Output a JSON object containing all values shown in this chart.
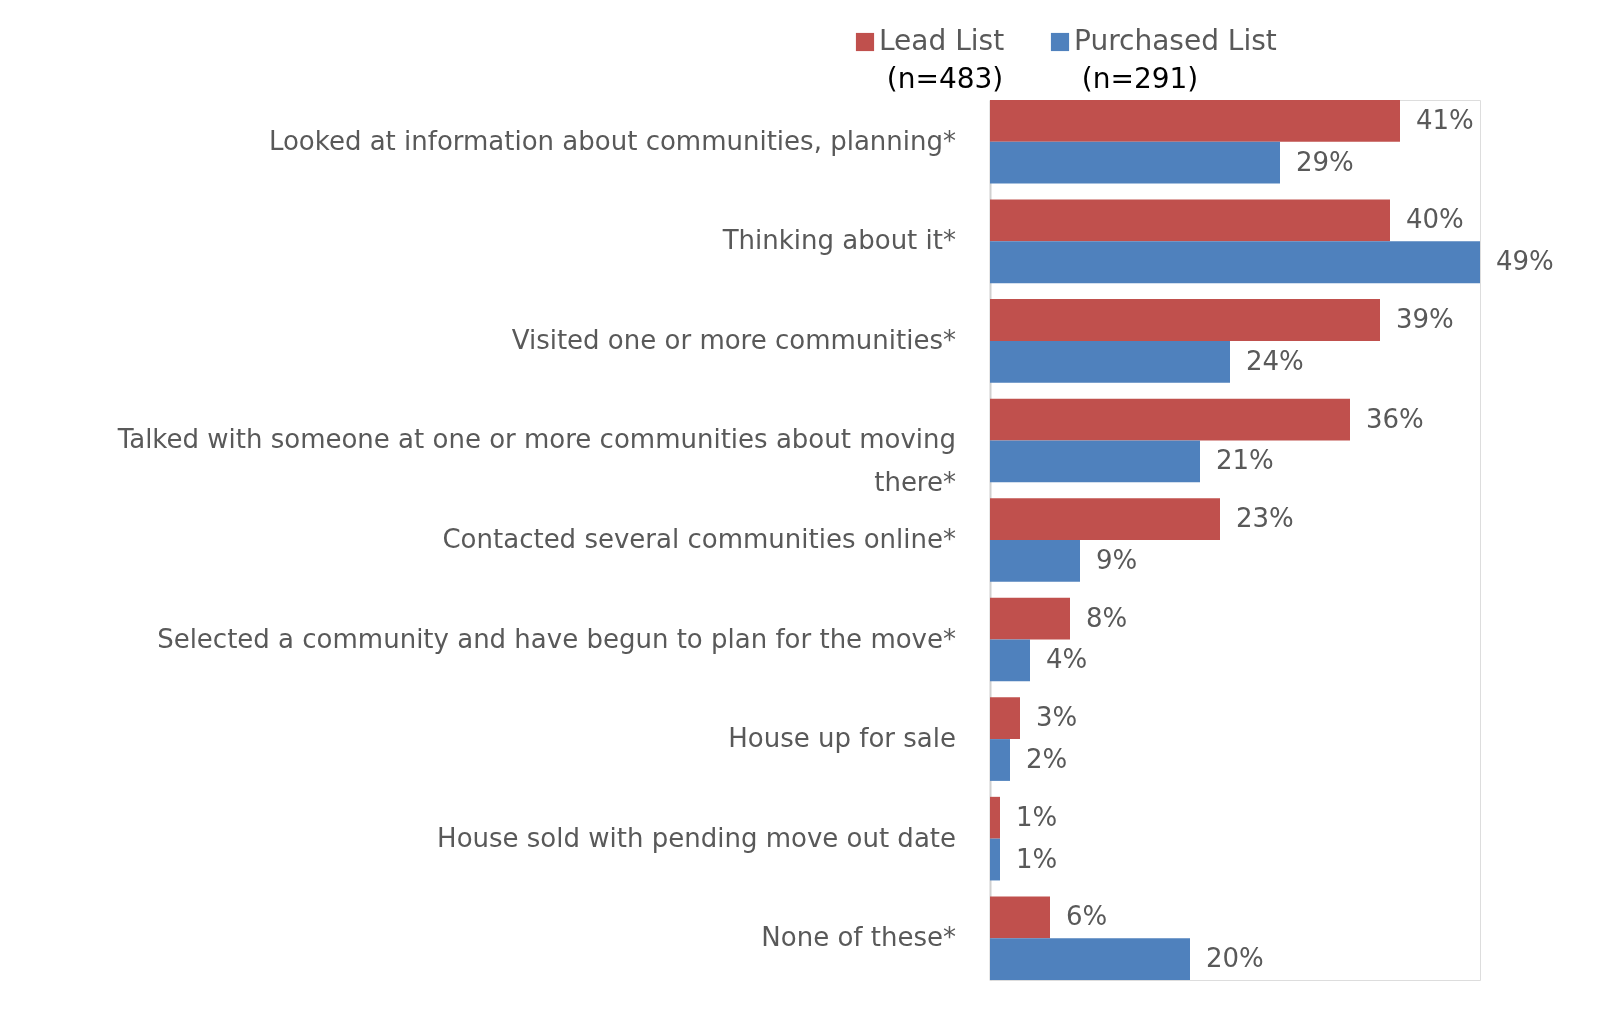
{
  "chart_data": {
    "type": "bar",
    "orientation": "horizontal",
    "categories": [
      "Looked at information about communities, planning*",
      "Thinking about it*",
      "Visited one or more communities*",
      "Talked with someone at one or more communities about moving there*",
      "Contacted several communities online*",
      "Selected a community and have begun to plan for the move*",
      "House up for sale",
      "House sold with pending move out date",
      "None of these*"
    ],
    "series": [
      {
        "name": "Lead List",
        "color": "#c0504d",
        "values": [
          41,
          40,
          39,
          36,
          23,
          8,
          3,
          1,
          6
        ],
        "value_labels": [
          "41%",
          "40%",
          "39%",
          "36%",
          "23%",
          "8%",
          "3%",
          "1%",
          "6%"
        ]
      },
      {
        "name": "Purchased List",
        "color": "#4f81bd",
        "values": [
          29,
          49,
          24,
          21,
          9,
          4,
          2,
          1,
          20
        ],
        "value_labels": [
          "29%",
          "49%",
          "24%",
          "21%",
          "9%",
          "4%",
          "2%",
          "1%",
          "20%"
        ]
      }
    ],
    "annotations": [
      "(n=483)",
      "(n=291)"
    ],
    "legend": "top",
    "grid": false
  }
}
